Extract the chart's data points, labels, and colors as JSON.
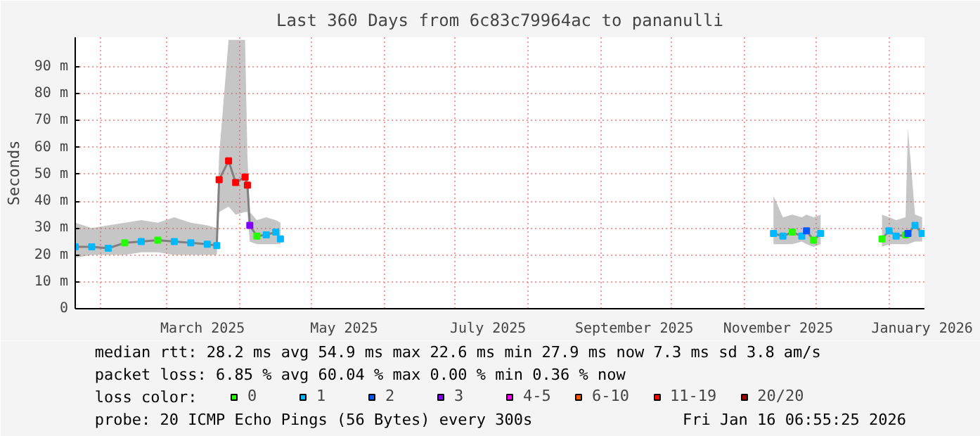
{
  "chart_data": {
    "type": "line",
    "title": "Last 360 Days from 6c83c79964ac to pananulli",
    "ylabel": "Seconds",
    "xlim": [
      "2025-01-21",
      "2026-01-16"
    ],
    "xticks": [
      {
        "value": "2025-02-01",
        "label": null
      },
      {
        "value": "2025-03-01",
        "label": null
      },
      {
        "value": "2025-03-16",
        "label": "March 2025"
      },
      {
        "value": "2025-04-01",
        "label": null
      },
      {
        "value": "2025-05-01",
        "label": null
      },
      {
        "value": "2025-05-15",
        "label": "May 2025"
      },
      {
        "value": "2025-06-01",
        "label": null
      },
      {
        "value": "2025-07-01",
        "label": null
      },
      {
        "value": "2025-07-15",
        "label": "July 2025"
      },
      {
        "value": "2025-08-01",
        "label": null
      },
      {
        "value": "2025-09-01",
        "label": null
      },
      {
        "value": "2025-09-15",
        "label": "September 2025"
      },
      {
        "value": "2025-10-01",
        "label": null
      },
      {
        "value": "2025-11-01",
        "label": null
      },
      {
        "value": "2025-11-15",
        "label": "November 2025"
      },
      {
        "value": "2025-12-01",
        "label": null
      },
      {
        "value": "2026-01-01",
        "label": null
      },
      {
        "value": "2026-01-15",
        "label": "January 2026"
      }
    ],
    "ylim": [
      0,
      101
    ],
    "yticks": [
      0,
      {
        "value": 10,
        "label": "10 m"
      },
      {
        "value": 20,
        "label": "20 m"
      },
      {
        "value": 30,
        "label": "30 m"
      },
      {
        "value": 40,
        "label": "40 m"
      },
      {
        "value": 50,
        "label": "50 m"
      },
      {
        "value": 60,
        "label": "60 m"
      },
      {
        "value": 70,
        "label": "70 m"
      },
      {
        "value": 80,
        "label": "80 m"
      },
      {
        "value": 90,
        "label": "90 m"
      }
    ],
    "grid": true,
    "legend": "bottom",
    "legend_title": "loss color:",
    "marker": "square",
    "annotations": [
      "median rtt:  28.2 ms avg  54.9 ms max  22.6 ms min  27.9 ms now  7.3 ms sd  3.8   am/s",
      "packet loss: 6.85 % avg  60.04 % max  0.00 % min  0.36 % now",
      "probe:       20 ICMP Echo Pings (56 Bytes) every 300s",
      "Fri Jan 16 06:55:25 2026"
    ],
    "series": [
      {
        "color": "#808080",
        "marker": "none",
        "x": [
          "2025-01-21",
          "2025-01-28",
          "2025-02-04",
          "2025-02-11",
          "2025-02-18",
          "2025-02-25",
          "2025-03-04",
          "2025-03-11",
          "2025-03-18",
          "2025-03-22",
          "2025-03-23",
          "2025-03-27",
          "2025-03-30",
          "2025-04-03",
          "2025-04-04",
          "2025-04-05",
          "2025-04-08",
          "2025-04-12",
          "2025-04-16",
          "2025-04-18",
          "2025-06-01",
          "2025-11-13",
          "2025-11-17",
          "2025-11-21",
          "2025-11-25",
          "2025-11-27",
          "2025-11-30",
          "2025-12-03",
          "2025-12-15",
          "2025-12-29",
          "2026-01-01",
          "2026-01-04",
          "2026-01-08",
          "2026-01-09",
          "2026-01-12",
          "2026-01-15"
        ],
        "values": [
          23,
          23,
          22.5,
          24.5,
          25,
          25.5,
          25,
          24.5,
          24,
          23.5,
          48,
          55,
          47,
          49,
          46,
          31,
          27,
          27.5,
          28.5,
          26,
          null,
          28,
          27,
          28.5,
          27,
          29,
          25.5,
          28,
          null,
          26,
          29,
          27,
          27.5,
          28,
          31,
          28
        ],
        "lower": [
          19,
          20,
          20,
          20,
          21,
          21,
          20,
          20,
          20,
          20,
          36,
          38,
          35,
          36,
          36,
          25,
          24,
          24,
          24,
          24,
          null,
          24,
          24,
          24,
          25,
          24,
          23,
          24,
          null,
          23,
          24,
          24,
          24,
          24,
          25,
          25
        ],
        "upper": [
          32,
          30,
          31,
          32,
          33,
          32,
          34,
          32,
          31,
          30,
          57,
          100,
          100,
          100,
          57,
          36,
          33,
          34,
          33,
          32,
          null,
          42,
          34,
          35,
          34,
          35,
          34,
          35,
          null,
          35,
          34,
          33,
          34,
          67,
          35,
          34
        ]
      },
      {
        "type": "scatter",
        "name": "0",
        "color": "#26ff00",
        "x": [
          "2025-02-11",
          "2025-02-25",
          "2025-04-08",
          "2025-11-21",
          "2025-11-30",
          "2025-12-29",
          "2026-01-08"
        ],
        "values": [
          24.5,
          25.5,
          27,
          28.5,
          25.5,
          26,
          27.5
        ]
      },
      {
        "type": "scatter",
        "name": "1",
        "color": "#00b8ff",
        "x": [
          "2025-01-21",
          "2025-01-28",
          "2025-02-04",
          "2025-02-18",
          "2025-03-04",
          "2025-03-11",
          "2025-03-18",
          "2025-03-22",
          "2025-04-12",
          "2025-04-16",
          "2025-04-18",
          "2025-11-13",
          "2025-11-17",
          "2025-11-25",
          "2025-12-03",
          "2026-01-01",
          "2026-01-04",
          "2026-01-12",
          "2026-01-15"
        ],
        "values": [
          23,
          23,
          22.5,
          25,
          25,
          24.5,
          24,
          23.5,
          27.5,
          28.5,
          26,
          28,
          27,
          27,
          28,
          29,
          27,
          31,
          28
        ]
      },
      {
        "type": "scatter",
        "name": "2",
        "color": "#0059ff",
        "x": [
          "2025-11-27",
          "2026-01-09"
        ],
        "values": [
          29,
          28
        ]
      },
      {
        "type": "scatter",
        "name": "3",
        "color": "#7e00ff",
        "x": [
          "2025-04-05"
        ],
        "values": [
          31
        ]
      },
      {
        "type": "scatter",
        "name": "4-5",
        "color": "#ff00ff"
      },
      {
        "type": "scatter",
        "name": "6-10",
        "color": "#ff5500"
      },
      {
        "type": "scatter",
        "name": "11-19",
        "color": "#ff0000",
        "x": [
          "2025-03-23",
          "2025-03-27",
          "2025-03-30",
          "2025-04-03",
          "2025-04-04"
        ],
        "values": [
          48,
          55,
          47,
          49,
          46
        ]
      },
      {
        "type": "scatter",
        "name": "20/20",
        "color": "#a10000"
      }
    ]
  }
}
